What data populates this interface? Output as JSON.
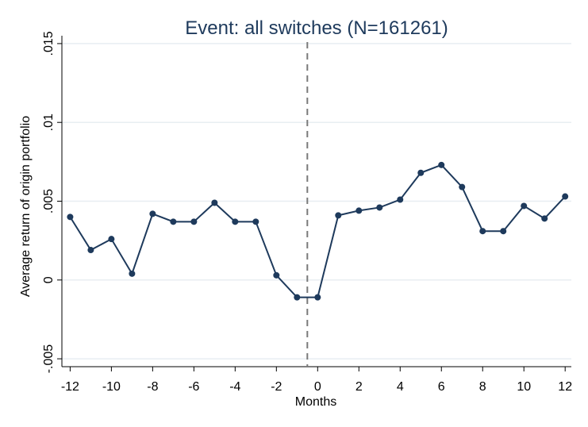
{
  "chart_data": {
    "type": "line",
    "title": "Event: all switches (N=161261)",
    "xlabel": "Months",
    "ylabel": "Average return of origin portfolio",
    "xlim": [
      -12.4,
      12.3
    ],
    "ylim": [
      -0.0055,
      0.0155
    ],
    "xticks": [
      -12,
      -10,
      -8,
      -6,
      -4,
      -2,
      0,
      2,
      4,
      6,
      8,
      10,
      12
    ],
    "xtick_labels": [
      "-12",
      "-10",
      "-8",
      "-6",
      "-4",
      "-2",
      "0",
      "2",
      "4",
      "6",
      "8",
      "10",
      "12"
    ],
    "yticks": [
      -0.005,
      0,
      0.005,
      0.01,
      0.015
    ],
    "ytick_labels": [
      "-.005",
      "0",
      ".005",
      ".01",
      ".015"
    ],
    "grid": true,
    "event_line_x": -0.5,
    "series": [
      {
        "x": [
          -12,
          -11,
          -10,
          -9,
          -8,
          -7,
          -6,
          -5,
          -4,
          -3,
          -2,
          -1,
          0,
          1,
          2,
          3,
          4,
          5,
          6,
          7,
          8,
          9,
          10,
          11,
          12
        ],
        "y": [
          0.004,
          0.0019,
          0.0026,
          0.0004,
          0.0042,
          0.0037,
          0.0037,
          0.0049,
          0.0037,
          0.0037,
          0.0003,
          -0.0011,
          -0.0011,
          0.0041,
          0.0044,
          0.0046,
          0.0051,
          0.0068,
          0.0073,
          0.0059,
          0.0031,
          0.0031,
          0.0047,
          0.0039,
          0.0053
        ]
      }
    ],
    "colors": {
      "line": "#1e3a5c",
      "marker": "#1e3a5c",
      "grid": "#e8eef2",
      "event_line": "#7a7a7a",
      "title": "#1e3a5c"
    }
  }
}
